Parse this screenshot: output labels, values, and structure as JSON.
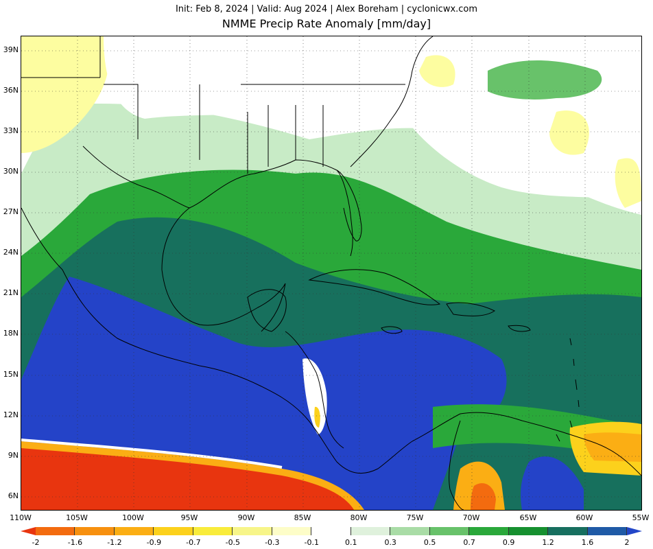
{
  "header": {
    "line1": "Init: Feb 8, 2024 | Valid: Aug 2024 | Alex Boreham | cyclonicwx.com",
    "line2": "NMME Precip Rate Anomaly [mm/day]"
  },
  "axes": {
    "lat_labels": [
      "39N",
      "36N",
      "33N",
      "30N",
      "27N",
      "24N",
      "21N",
      "18N",
      "15N",
      "12N",
      "9N",
      "6N"
    ],
    "lon_labels": [
      "110W",
      "105W",
      "100W",
      "95W",
      "90W",
      "85W",
      "80W",
      "75W",
      "70W",
      "65W",
      "60W",
      "55W"
    ]
  },
  "colorbar": {
    "labels": [
      "-2",
      "-1.6",
      "-1.2",
      "-0.9",
      "-0.7",
      "-0.5",
      "-0.3",
      "-0.1",
      "0.1",
      "0.3",
      "0.5",
      "0.7",
      "0.9",
      "1.2",
      "1.6",
      "2"
    ],
    "colors": [
      "#e8350f",
      "#f36b0f",
      "#f7900f",
      "#fbae14",
      "#fcd11c",
      "#f9ec3b",
      "#f7f589",
      "#fdfdc8",
      "#ffffff",
      "#dff1dc",
      "#a9dca6",
      "#68c26a",
      "#2aa83a",
      "#16902f",
      "#176f5f",
      "#1f5aa6",
      "#2246c8"
    ],
    "colors_note": ""
  },
  "field_colors": {
    "neg_strong": "#e8350f",
    "neg_mid": "#fbae14",
    "neg_weak": "#fdfda0",
    "neutral": "#ffffff",
    "pos_weak": "#c8ebc6",
    "pos_mid": "#2aa83a",
    "pos_strong": "#17705d",
    "pos_max": "#2443c8"
  }
}
